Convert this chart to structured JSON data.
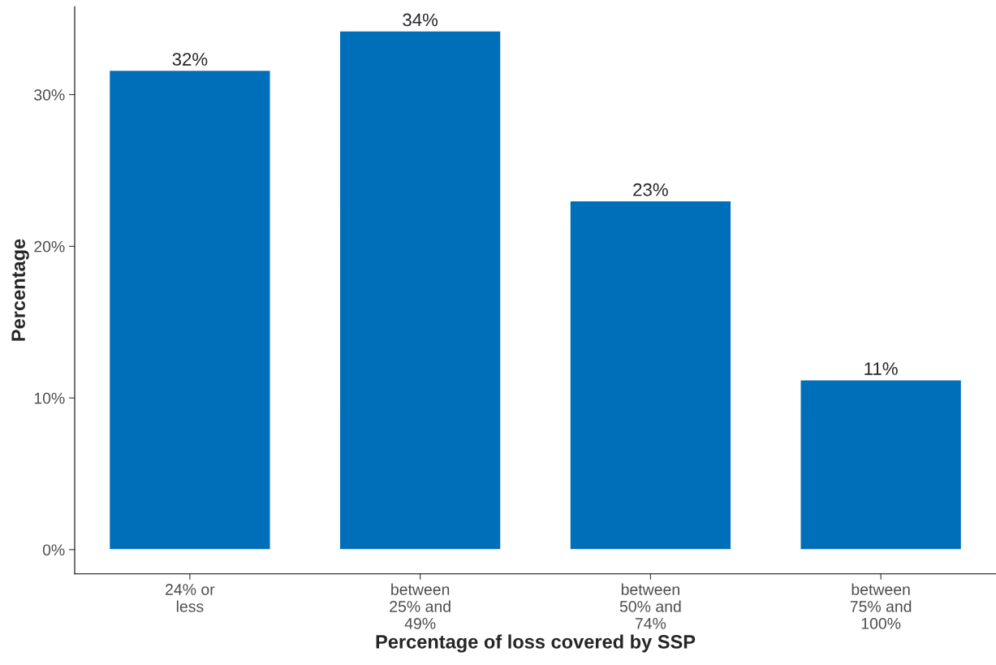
{
  "chart_data": {
    "type": "bar",
    "xlabel": "Percentage of loss covered by SSP",
    "ylabel": "Percentage",
    "categories": [
      "24% or\nless",
      "between\n25% and\n49%",
      "between\n50% and\n74%",
      "between\n75% and\n100%"
    ],
    "values": [
      31.6,
      34.2,
      23.0,
      11.2
    ],
    "value_labels": [
      "32%",
      "34%",
      "23%",
      "11%"
    ],
    "color": "#006fb9",
    "ylim": [
      -1.6,
      35.8
    ],
    "yticks": [
      {
        "value": 0,
        "label": "0%"
      },
      {
        "value": 10,
        "label": "10%"
      },
      {
        "value": 20,
        "label": "20%"
      },
      {
        "value": 30,
        "label": "30%"
      }
    ],
    "grid": false,
    "legend": false
  }
}
